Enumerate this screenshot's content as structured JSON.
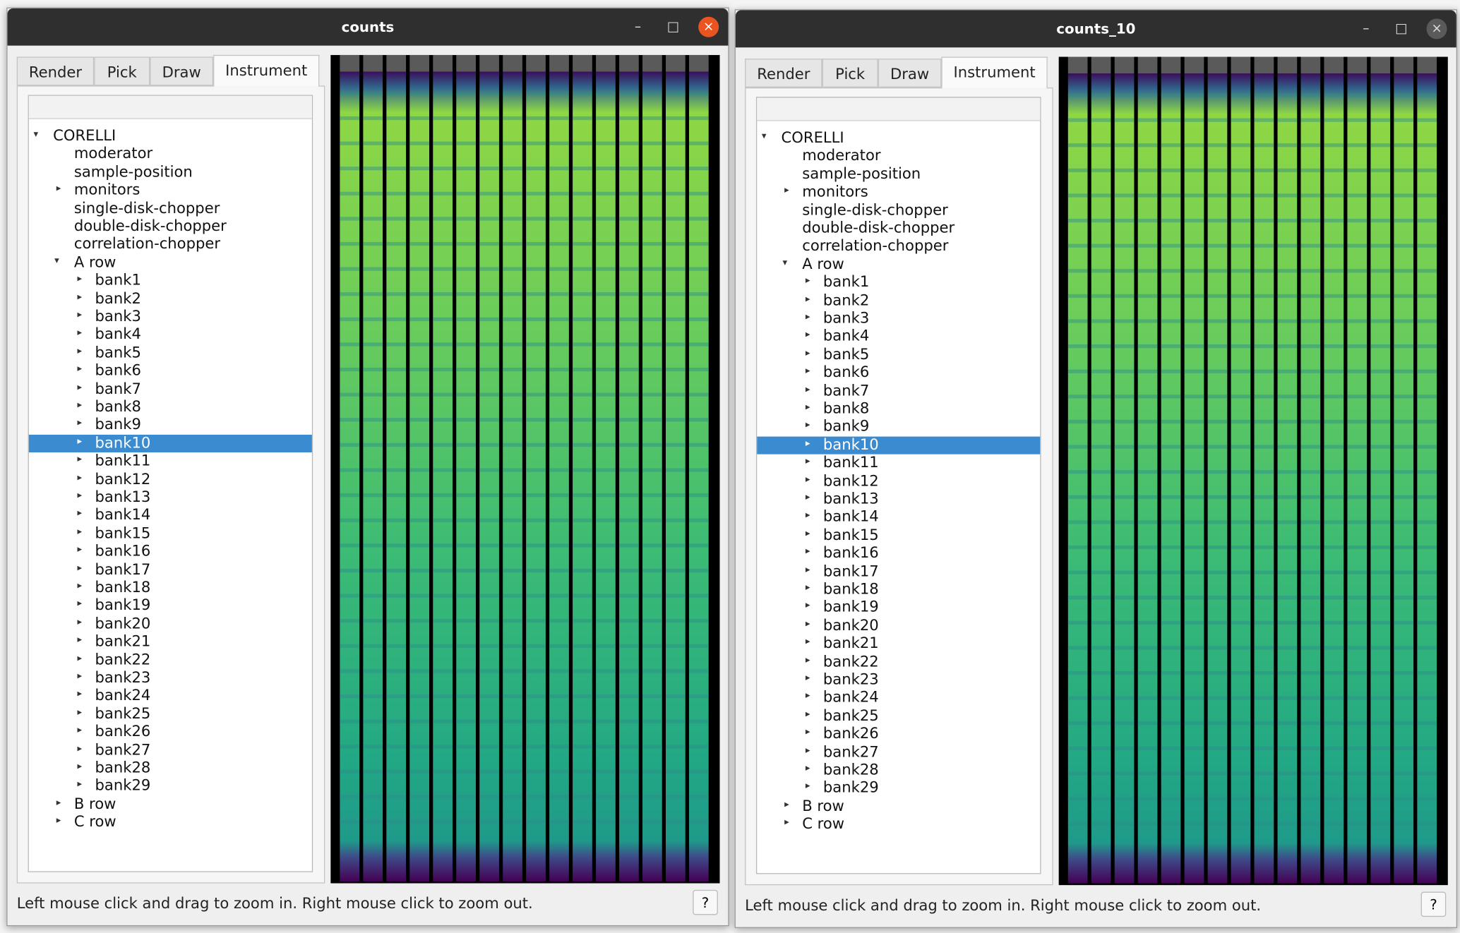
{
  "windows": [
    {
      "title": "counts",
      "active": true,
      "tabs": [
        "Render",
        "Pick",
        "Draw",
        "Instrument"
      ],
      "active_tab": 3,
      "tree": [
        {
          "label": "CORELLI",
          "level": 0,
          "toggle": "open"
        },
        {
          "label": "moderator",
          "level": 1
        },
        {
          "label": "sample-position",
          "level": 1
        },
        {
          "label": "monitors",
          "level": 1,
          "toggle": "closed"
        },
        {
          "label": "single-disk-chopper",
          "level": 1
        },
        {
          "label": "double-disk-chopper",
          "level": 1
        },
        {
          "label": "correlation-chopper",
          "level": 1
        },
        {
          "label": "A row",
          "level": 1,
          "toggle": "open"
        },
        {
          "label": "bank1",
          "level": 2,
          "toggle": "closed"
        },
        {
          "label": "bank2",
          "level": 2,
          "toggle": "closed"
        },
        {
          "label": "bank3",
          "level": 2,
          "toggle": "closed"
        },
        {
          "label": "bank4",
          "level": 2,
          "toggle": "closed"
        },
        {
          "label": "bank5",
          "level": 2,
          "toggle": "closed"
        },
        {
          "label": "bank6",
          "level": 2,
          "toggle": "closed"
        },
        {
          "label": "bank7",
          "level": 2,
          "toggle": "closed"
        },
        {
          "label": "bank8",
          "level": 2,
          "toggle": "closed"
        },
        {
          "label": "bank9",
          "level": 2,
          "toggle": "closed"
        },
        {
          "label": "bank10",
          "level": 2,
          "toggle": "closed",
          "selected": true
        },
        {
          "label": "bank11",
          "level": 2,
          "toggle": "closed"
        },
        {
          "label": "bank12",
          "level": 2,
          "toggle": "closed"
        },
        {
          "label": "bank13",
          "level": 2,
          "toggle": "closed"
        },
        {
          "label": "bank14",
          "level": 2,
          "toggle": "closed"
        },
        {
          "label": "bank15",
          "level": 2,
          "toggle": "closed"
        },
        {
          "label": "bank16",
          "level": 2,
          "toggle": "closed"
        },
        {
          "label": "bank17",
          "level": 2,
          "toggle": "closed"
        },
        {
          "label": "bank18",
          "level": 2,
          "toggle": "closed"
        },
        {
          "label": "bank19",
          "level": 2,
          "toggle": "closed"
        },
        {
          "label": "bank20",
          "level": 2,
          "toggle": "closed"
        },
        {
          "label": "bank21",
          "level": 2,
          "toggle": "closed"
        },
        {
          "label": "bank22",
          "level": 2,
          "toggle": "closed"
        },
        {
          "label": "bank23",
          "level": 2,
          "toggle": "closed"
        },
        {
          "label": "bank24",
          "level": 2,
          "toggle": "closed"
        },
        {
          "label": "bank25",
          "level": 2,
          "toggle": "closed"
        },
        {
          "label": "bank26",
          "level": 2,
          "toggle": "closed"
        },
        {
          "label": "bank27",
          "level": 2,
          "toggle": "closed"
        },
        {
          "label": "bank28",
          "level": 2,
          "toggle": "closed"
        },
        {
          "label": "bank29",
          "level": 2,
          "toggle": "closed"
        },
        {
          "label": "B row",
          "level": 1,
          "toggle": "closed"
        },
        {
          "label": "C row",
          "level": 1,
          "toggle": "closed"
        }
      ],
      "status": "Left mouse click and drag to zoom in. Right mouse click to zoom out.",
      "help": "?"
    },
    {
      "title": "counts_10",
      "active": false,
      "tabs": [
        "Render",
        "Pick",
        "Draw",
        "Instrument"
      ],
      "active_tab": 3,
      "tree": [
        {
          "label": "CORELLI",
          "level": 0,
          "toggle": "open"
        },
        {
          "label": "moderator",
          "level": 1
        },
        {
          "label": "sample-position",
          "level": 1
        },
        {
          "label": "monitors",
          "level": 1,
          "toggle": "closed"
        },
        {
          "label": "single-disk-chopper",
          "level": 1
        },
        {
          "label": "double-disk-chopper",
          "level": 1
        },
        {
          "label": "correlation-chopper",
          "level": 1
        },
        {
          "label": "A row",
          "level": 1,
          "toggle": "open"
        },
        {
          "label": "bank1",
          "level": 2,
          "toggle": "closed"
        },
        {
          "label": "bank2",
          "level": 2,
          "toggle": "closed"
        },
        {
          "label": "bank3",
          "level": 2,
          "toggle": "closed"
        },
        {
          "label": "bank4",
          "level": 2,
          "toggle": "closed"
        },
        {
          "label": "bank5",
          "level": 2,
          "toggle": "closed"
        },
        {
          "label": "bank6",
          "level": 2,
          "toggle": "closed"
        },
        {
          "label": "bank7",
          "level": 2,
          "toggle": "closed"
        },
        {
          "label": "bank8",
          "level": 2,
          "toggle": "closed"
        },
        {
          "label": "bank9",
          "level": 2,
          "toggle": "closed"
        },
        {
          "label": "bank10",
          "level": 2,
          "toggle": "closed",
          "selected": true
        },
        {
          "label": "bank11",
          "level": 2,
          "toggle": "closed"
        },
        {
          "label": "bank12",
          "level": 2,
          "toggle": "closed"
        },
        {
          "label": "bank13",
          "level": 2,
          "toggle": "closed"
        },
        {
          "label": "bank14",
          "level": 2,
          "toggle": "closed"
        },
        {
          "label": "bank15",
          "level": 2,
          "toggle": "closed"
        },
        {
          "label": "bank16",
          "level": 2,
          "toggle": "closed"
        },
        {
          "label": "bank17",
          "level": 2,
          "toggle": "closed"
        },
        {
          "label": "bank18",
          "level": 2,
          "toggle": "closed"
        },
        {
          "label": "bank19",
          "level": 2,
          "toggle": "closed"
        },
        {
          "label": "bank20",
          "level": 2,
          "toggle": "closed"
        },
        {
          "label": "bank21",
          "level": 2,
          "toggle": "closed"
        },
        {
          "label": "bank22",
          "level": 2,
          "toggle": "closed"
        },
        {
          "label": "bank23",
          "level": 2,
          "toggle": "closed"
        },
        {
          "label": "bank24",
          "level": 2,
          "toggle": "closed"
        },
        {
          "label": "bank25",
          "level": 2,
          "toggle": "closed"
        },
        {
          "label": "bank26",
          "level": 2,
          "toggle": "closed"
        },
        {
          "label": "bank27",
          "level": 2,
          "toggle": "closed"
        },
        {
          "label": "bank28",
          "level": 2,
          "toggle": "closed"
        },
        {
          "label": "bank29",
          "level": 2,
          "toggle": "closed"
        },
        {
          "label": "B row",
          "level": 1,
          "toggle": "closed"
        },
        {
          "label": "C row",
          "level": 1,
          "toggle": "closed"
        }
      ],
      "status": "Left mouse click and drag to zoom in. Right mouse click to zoom out.",
      "help": "?"
    }
  ]
}
